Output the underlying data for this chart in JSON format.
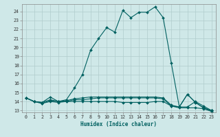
{
  "title": "",
  "xlabel": "Humidex (Indice chaleur)",
  "ylabel": "",
  "bg_color": "#cfe8e8",
  "grid_color": "#b0cccc",
  "line_color": "#006060",
  "xlim": [
    -0.5,
    23.5
  ],
  "ylim": [
    12.8,
    24.8
  ],
  "yticks": [
    13,
    14,
    15,
    16,
    17,
    18,
    19,
    20,
    21,
    22,
    23,
    24
  ],
  "xticks": [
    0,
    1,
    2,
    3,
    4,
    5,
    6,
    7,
    8,
    9,
    10,
    11,
    12,
    13,
    14,
    15,
    16,
    17,
    18,
    19,
    20,
    21,
    22,
    23
  ],
  "series": [
    {
      "x": [
        0,
        1,
        2,
        3,
        4,
        5,
        6,
        7,
        8,
        9,
        10,
        11,
        12,
        13,
        14,
        15,
        16,
        17,
        18,
        19,
        20,
        21,
        22,
        23
      ],
      "y": [
        14.4,
        14.0,
        13.9,
        14.5,
        14.0,
        14.2,
        15.5,
        17.0,
        19.7,
        21.0,
        22.2,
        21.7,
        24.1,
        23.3,
        23.9,
        23.9,
        24.5,
        23.3,
        18.3,
        13.4,
        14.8,
        13.9,
        13.3,
        13.0
      ]
    },
    {
      "x": [
        0,
        1,
        2,
        3,
        4,
        5,
        6,
        7,
        8,
        9,
        10,
        11,
        12,
        13,
        14,
        15,
        16,
        17,
        18,
        19,
        20,
        21,
        22,
        23
      ],
      "y": [
        14.4,
        14.0,
        13.8,
        14.0,
        13.9,
        14.0,
        14.0,
        14.0,
        14.0,
        14.0,
        14.0,
        14.0,
        13.9,
        13.9,
        13.9,
        13.9,
        14.0,
        14.0,
        13.5,
        13.3,
        13.3,
        13.3,
        13.2,
        12.9
      ]
    },
    {
      "x": [
        0,
        1,
        2,
        3,
        4,
        5,
        6,
        7,
        8,
        9,
        10,
        11,
        12,
        13,
        14,
        15,
        16,
        17,
        18,
        19,
        20,
        21,
        22,
        23
      ],
      "y": [
        14.4,
        14.0,
        13.8,
        14.1,
        14.0,
        14.0,
        14.2,
        14.2,
        14.3,
        14.4,
        14.4,
        14.4,
        14.4,
        14.4,
        14.4,
        14.4,
        14.4,
        14.3,
        13.5,
        13.4,
        14.8,
        13.9,
        13.3,
        13.0
      ]
    },
    {
      "x": [
        0,
        1,
        2,
        3,
        4,
        5,
        6,
        7,
        8,
        9,
        10,
        11,
        12,
        13,
        14,
        15,
        16,
        17,
        18,
        19,
        20,
        21,
        22,
        23
      ],
      "y": [
        14.4,
        14.0,
        13.9,
        14.2,
        14.0,
        14.1,
        14.3,
        14.4,
        14.5,
        14.5,
        14.5,
        14.5,
        14.5,
        14.5,
        14.5,
        14.5,
        14.5,
        14.4,
        13.6,
        13.4,
        13.4,
        14.0,
        13.5,
        13.0
      ]
    }
  ]
}
